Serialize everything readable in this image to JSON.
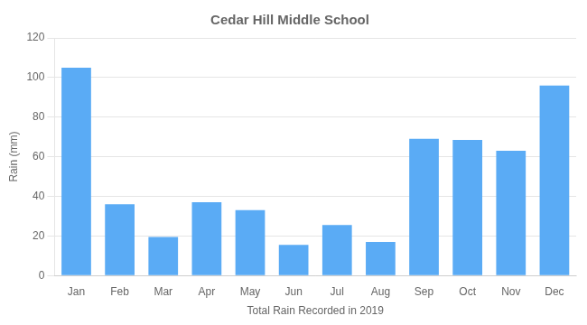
{
  "chart_data": {
    "type": "bar",
    "title": "Cedar Hill Middle School",
    "xlabel": "Total Rain Recorded in 2019",
    "ylabel": "Rain (mm)",
    "categories": [
      "Jan",
      "Feb",
      "Mar",
      "Apr",
      "May",
      "Jun",
      "Jul",
      "Aug",
      "Sep",
      "Oct",
      "Nov",
      "Dec"
    ],
    "values": [
      105,
      36,
      19.5,
      37,
      33,
      15.5,
      25.5,
      17,
      69,
      68.5,
      63,
      96
    ],
    "color": "#5aabf5",
    "ylim": [
      0,
      120
    ],
    "yticks": [
      0,
      20,
      40,
      60,
      80,
      100,
      120
    ],
    "grid": true
  }
}
